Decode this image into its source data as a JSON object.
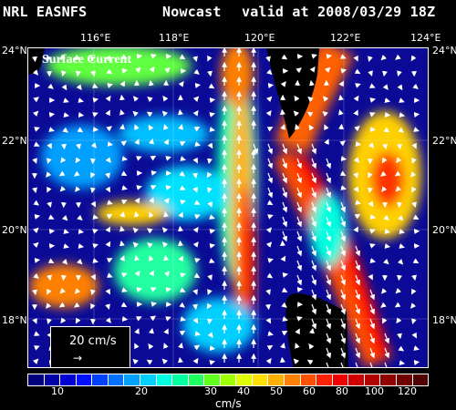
{
  "header": {
    "left": "NRL EASNFS",
    "mid": "Nowcast",
    "right": "valid at 2008/03/29 18Z"
  },
  "map": {
    "lon_labels": [
      "116°E",
      "118°E",
      "120°E",
      "122°E",
      "124°E"
    ],
    "lat_labels": [
      "24°N",
      "22°N",
      "20°N",
      "18°N"
    ],
    "panel_label": "Surface Current",
    "reference_vector": "20 cm/s",
    "reference_arrow_glyph": "→"
  },
  "colorbar": {
    "labels": [
      "10",
      "20",
      "30",
      "40",
      "50",
      "60",
      "80",
      "100",
      "120"
    ],
    "unit": "cm/s",
    "colors": [
      "#00007f",
      "#0000a8",
      "#0000d2",
      "#0010ff",
      "#0040ff",
      "#0070ff",
      "#00a0ff",
      "#00d0ff",
      "#00ffe0",
      "#00ffa0",
      "#20ff60",
      "#60ff20",
      "#a0ff00",
      "#e0ff00",
      "#ffe000",
      "#ffb000",
      "#ff8000",
      "#ff5000",
      "#ff2000",
      "#f00000",
      "#d00000",
      "#b00000",
      "#900000",
      "#700000",
      "#500000"
    ]
  },
  "colors": {
    "background": "#000000",
    "land": "#000000",
    "slow_water": "#0a0a96",
    "fast_current": "#ff2000",
    "vectors": "#ffffff"
  }
}
